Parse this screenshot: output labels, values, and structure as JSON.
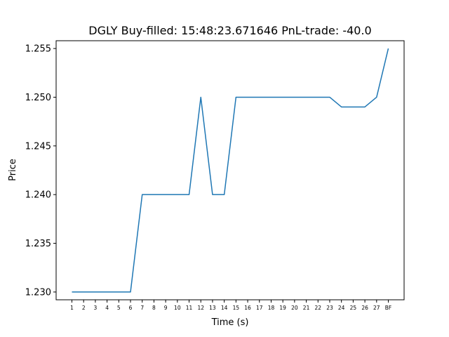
{
  "chart_data": {
    "type": "line",
    "title": "DGLY  Buy-filled:  15:48:23.671646  PnL-trade:  -40.0",
    "xlabel": "Time (s)",
    "ylabel": "Price",
    "categories": [
      "1",
      "2",
      "3",
      "4",
      "5",
      "6",
      "7",
      "8",
      "9",
      "10",
      "11",
      "12",
      "13",
      "14",
      "15",
      "16",
      "17",
      "18",
      "19",
      "20",
      "21",
      "22",
      "23",
      "24",
      "25",
      "26",
      "27",
      "BF"
    ],
    "series": [
      {
        "values": [
          1.23,
          1.23,
          1.23,
          1.23,
          1.23,
          1.23,
          1.24,
          1.24,
          1.24,
          1.24,
          1.24,
          1.25,
          1.24,
          1.24,
          1.25,
          1.25,
          1.25,
          1.25,
          1.25,
          1.25,
          1.25,
          1.25,
          1.25,
          1.249,
          1.249,
          1.249,
          1.25,
          1.255
        ],
        "color": "#1f77b4"
      }
    ],
    "ylim": [
      1.2292,
      1.2558
    ],
    "yticks": [
      "1.230",
      "1.235",
      "1.240",
      "1.245",
      "1.250",
      "1.255"
    ],
    "grid": false
  }
}
